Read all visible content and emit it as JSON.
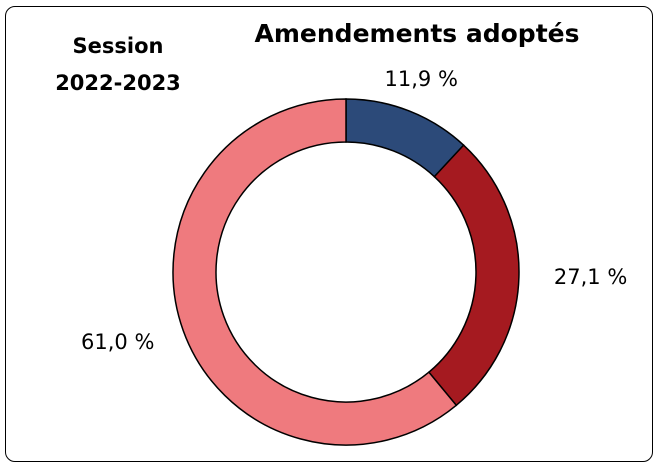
{
  "header": {
    "session_line1": "Session",
    "session_line2": "2022-2023"
  },
  "chart_data": {
    "type": "pie",
    "style": "donut",
    "title": "Amendements adoptés",
    "categories": [
      "",
      "",
      ""
    ],
    "values": [
      11.9,
      27.1,
      61.0
    ],
    "data_labels": [
      "11,9 %",
      "27,1 %",
      "61,0 %"
    ],
    "colors": [
      "#2C4A79",
      "#A51A20",
      "#EF7A7E"
    ],
    "start_angle": "12 o'clock",
    "direction": "clockwise",
    "legend": "none"
  }
}
